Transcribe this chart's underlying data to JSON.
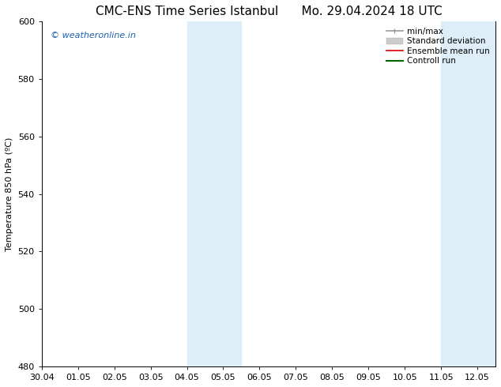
{
  "title_left": "CMC-ENS Time Series Istanbul",
  "title_right": "Mo. 29.04.2024 18 UTC",
  "ylabel": "Temperature 850 hPa (ºC)",
  "xlim_start": 0,
  "xlim_end": 12.5,
  "ylim": [
    480,
    600
  ],
  "yticks": [
    480,
    500,
    520,
    540,
    560,
    580,
    600
  ],
  "xtick_labels": [
    "30.04",
    "01.05",
    "02.05",
    "03.05",
    "04.05",
    "05.05",
    "06.05",
    "07.05",
    "08.05",
    "09.05",
    "10.05",
    "11.05",
    "12.05"
  ],
  "shaded_bands": [
    {
      "x_start": 4.0,
      "x_end": 5.5,
      "color": "#ddeef8"
    },
    {
      "x_start": 11.0,
      "x_end": 12.5,
      "color": "#ddeef8"
    }
  ],
  "watermark_text": "© weatheronline.in",
  "watermark_color": "#1a5fad",
  "background_color": "#ffffff",
  "legend_items": [
    {
      "label": "min/max",
      "color": "#999999",
      "lw": 1.2,
      "ls": "-",
      "type": "line_with_caps"
    },
    {
      "label": "Standard deviation",
      "color": "#cccccc",
      "lw": 7,
      "ls": "-",
      "type": "band"
    },
    {
      "label": "Ensemble mean run",
      "color": "#dd0000",
      "lw": 1.2,
      "ls": "-",
      "type": "line"
    },
    {
      "label": "Controll run",
      "color": "#006600",
      "lw": 1.5,
      "ls": "-",
      "type": "line"
    }
  ],
  "title_fontsize": 11,
  "axis_label_fontsize": 8,
  "tick_fontsize": 8,
  "watermark_fontsize": 8,
  "legend_fontsize": 7.5
}
